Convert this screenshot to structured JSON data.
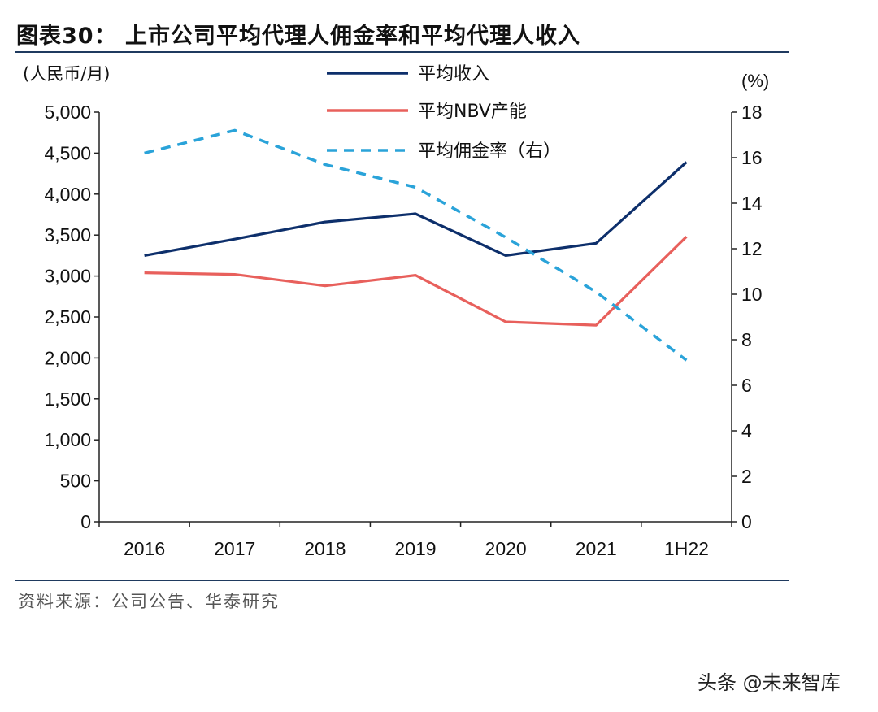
{
  "figure": {
    "title": "图表30：  上市公司平均代理人佣金率和平均代理人收入",
    "source": "资料来源：公司公告、华泰研究",
    "watermark": "头条 @未来智库"
  },
  "chart_data": {
    "type": "line",
    "categories": [
      "2016",
      "2017",
      "2018",
      "2019",
      "2020",
      "2021",
      "1H22"
    ],
    "left_axis": {
      "unit_label": "(人民币/月)",
      "range": [
        0,
        5000
      ],
      "ticks": [
        0,
        500,
        1000,
        1500,
        2000,
        2500,
        3000,
        3500,
        4000,
        4500,
        5000
      ],
      "tick_labels": [
        "0",
        "500",
        "1,000",
        "1,500",
        "2,000",
        "2,500",
        "3,000",
        "3,500",
        "4,000",
        "4,500",
        "5,000"
      ]
    },
    "right_axis": {
      "unit_label": "(%)",
      "range": [
        0,
        18
      ],
      "ticks": [
        0,
        2,
        4,
        6,
        8,
        10,
        12,
        14,
        16,
        18
      ],
      "tick_labels": [
        "0",
        "2",
        "4",
        "6",
        "8",
        "10",
        "12",
        "14",
        "16",
        "18"
      ]
    },
    "series": [
      {
        "name": "平均收入",
        "axis": "left",
        "style": "solid",
        "color": "#0d2f6b",
        "values": [
          3250,
          3450,
          3660,
          3760,
          3250,
          3400,
          4390
        ]
      },
      {
        "name": "平均NBV产能",
        "axis": "left",
        "style": "solid",
        "color": "#e8605c",
        "values": [
          3040,
          3020,
          2880,
          3010,
          2440,
          2400,
          3480
        ]
      },
      {
        "name": "平均佣金率（右）",
        "axis": "right",
        "style": "dashed",
        "color": "#2aa3d9",
        "values": [
          16.2,
          17.2,
          15.7,
          14.7,
          12.5,
          10.1,
          7.1
        ]
      }
    ],
    "legend_position": "top-center"
  }
}
